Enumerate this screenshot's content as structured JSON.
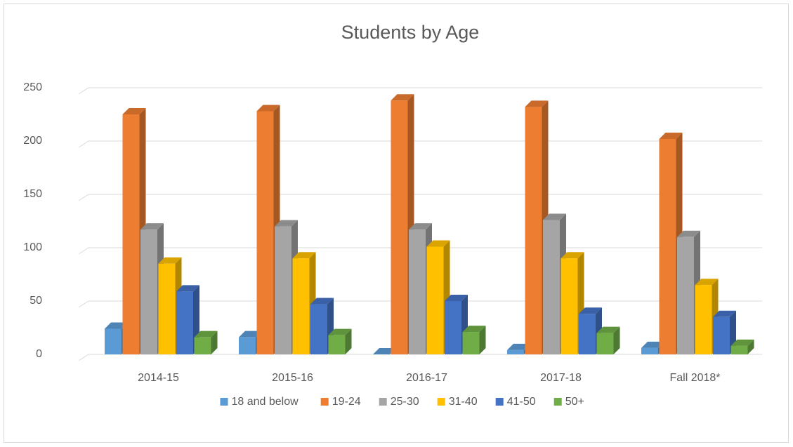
{
  "chart_data": {
    "type": "bar3d",
    "title": "Students by Age",
    "categories": [
      "2014-15",
      "2015-16",
      "2016-17",
      "2017-18",
      "Fall 2018*"
    ],
    "series": [
      {
        "name": "18 and below",
        "color": "#5b9bd5",
        "values": [
          24,
          16,
          0,
          4,
          6
        ]
      },
      {
        "name": "19-24",
        "color": "#ed7d31",
        "values": [
          225,
          228,
          238,
          232,
          202
        ]
      },
      {
        "name": "25-30",
        "color": "#a5a5a5",
        "values": [
          117,
          120,
          117,
          126,
          110
        ]
      },
      {
        "name": "31-40",
        "color": "#ffc000",
        "values": [
          85,
          90,
          101,
          90,
          65
        ]
      },
      {
        "name": "41-50",
        "color": "#4472c4",
        "values": [
          59,
          47,
          50,
          38,
          35
        ]
      },
      {
        "name": "50+",
        "color": "#70ad47",
        "values": [
          16,
          18,
          21,
          20,
          8
        ]
      }
    ],
    "ylim": [
      0,
      250
    ],
    "yticks": [
      0,
      50,
      100,
      150,
      200,
      250
    ],
    "grid": true,
    "legend": "bottom"
  }
}
